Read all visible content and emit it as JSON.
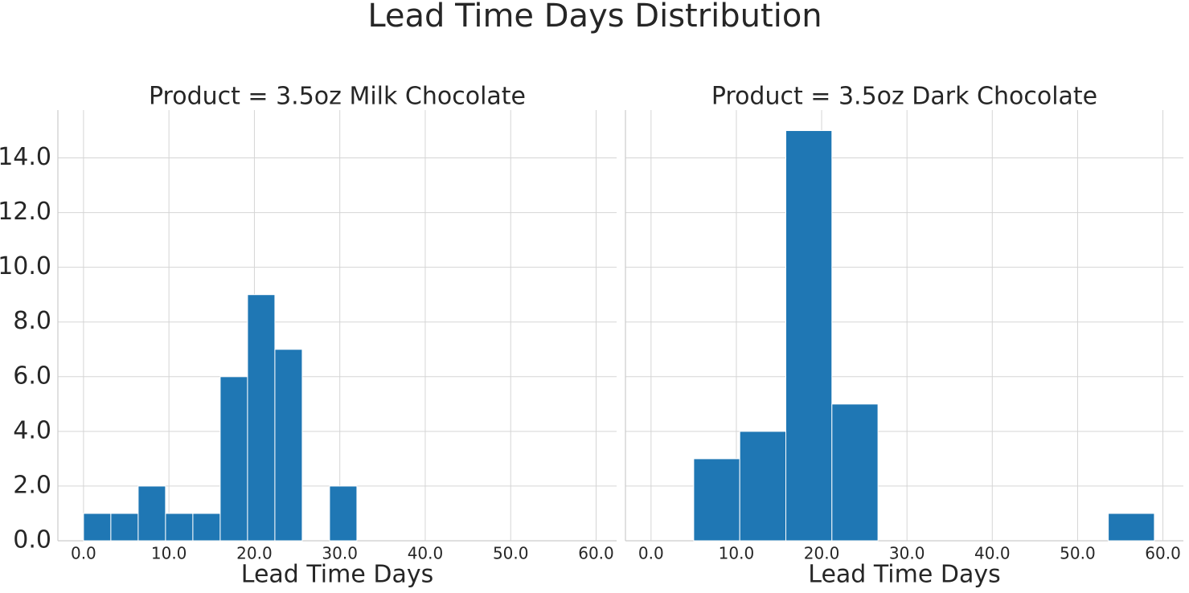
{
  "title": "Lead Time Days Distribution",
  "chart_data": [
    {
      "type": "histogram",
      "title": "Product = 3.5oz Milk Chocolate",
      "xlabel": "Lead Time Days",
      "bins": [
        0,
        3.2,
        6.4,
        9.6,
        12.8,
        16,
        19.2,
        22.4,
        25.6,
        28.8,
        32
      ],
      "values": [
        1,
        1,
        2,
        1,
        1,
        6,
        9,
        7,
        0,
        2
      ],
      "color": "#1f77b4",
      "xlim": [
        -3,
        62.4
      ],
      "ylim": [
        0,
        15.75
      ],
      "xticks": [
        {
          "value": 0,
          "label": "0.0"
        },
        {
          "value": 10,
          "label": "10.0"
        },
        {
          "value": 20,
          "label": "20.0"
        },
        {
          "value": 30,
          "label": "30.0"
        },
        {
          "value": 40,
          "label": "40.0"
        },
        {
          "value": 50,
          "label": "50.0"
        },
        {
          "value": 60,
          "label": "60.0"
        }
      ],
      "yticks": [
        {
          "value": 0,
          "label": "0.0"
        },
        {
          "value": 2,
          "label": "2.0"
        },
        {
          "value": 4,
          "label": "4.0"
        },
        {
          "value": 6,
          "label": "6.0"
        },
        {
          "value": 8,
          "label": "8.0"
        },
        {
          "value": 10,
          "label": "10.0"
        },
        {
          "value": 12,
          "label": "12.0"
        },
        {
          "value": 14,
          "label": "14.0"
        }
      ],
      "grid": true
    },
    {
      "type": "histogram",
      "title": "Product = 3.5oz Dark Chocolate",
      "xlabel": "Lead Time Days",
      "bins": [
        5,
        10.4,
        15.8,
        21.2,
        26.6,
        32,
        37.4,
        42.8,
        48.2,
        53.6,
        59
      ],
      "values": [
        3,
        4,
        15,
        5,
        0,
        0,
        0,
        0,
        0,
        1
      ],
      "color": "#1f77b4",
      "xlim": [
        -3,
        62.4
      ],
      "ylim": [
        0,
        15.75
      ],
      "xticks": [
        {
          "value": 0,
          "label": "0.0"
        },
        {
          "value": 10,
          "label": "10.0"
        },
        {
          "value": 20,
          "label": "20.0"
        },
        {
          "value": 30,
          "label": "30.0"
        },
        {
          "value": 40,
          "label": "40.0"
        },
        {
          "value": 50,
          "label": "50.0"
        },
        {
          "value": 60,
          "label": "60.0"
        }
      ],
      "sharey": true,
      "grid": true
    }
  ]
}
